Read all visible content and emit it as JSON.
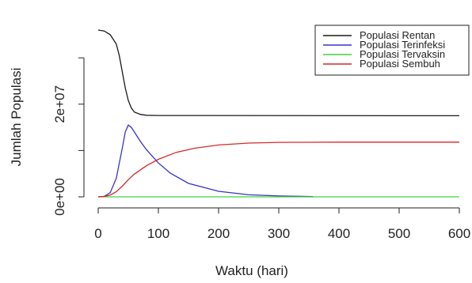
{
  "chart_data": {
    "type": "line",
    "xlabel": "Waktu (hari)",
    "ylabel": "Jumlah Populasi",
    "xlim": [
      0,
      600
    ],
    "ylim": [
      0,
      36000000
    ],
    "x_ticks": [
      {
        "value": 0,
        "label": "0"
      },
      {
        "value": 100,
        "label": "100"
      },
      {
        "value": 200,
        "label": "200"
      },
      {
        "value": 300,
        "label": "300"
      },
      {
        "value": 400,
        "label": "400"
      },
      {
        "value": 500,
        "label": "500"
      },
      {
        "value": 600,
        "label": "600"
      }
    ],
    "y_ticks": [
      {
        "value": 0,
        "label": "0e+00"
      },
      {
        "value": 20000000,
        "label": "2e+07"
      }
    ],
    "y_minor_ticks": [
      10000000,
      30000000
    ],
    "grid": false,
    "legend_position": "top-right",
    "series": [
      {
        "name": "Populasi Rentan",
        "color": "#1a1a1a",
        "points": [
          [
            0,
            36000000
          ],
          [
            10,
            35800000
          ],
          [
            20,
            35000000
          ],
          [
            30,
            33000000
          ],
          [
            35,
            30500000
          ],
          [
            40,
            27000000
          ],
          [
            45,
            23500000
          ],
          [
            50,
            20800000
          ],
          [
            55,
            19200000
          ],
          [
            60,
            18300000
          ],
          [
            70,
            17800000
          ],
          [
            80,
            17600000
          ],
          [
            100,
            17550000
          ],
          [
            600,
            17500000
          ]
        ]
      },
      {
        "name": "Populasi Terinfeksi",
        "color": "#3535c8",
        "points": [
          [
            0,
            0
          ],
          [
            10,
            100000
          ],
          [
            20,
            900000
          ],
          [
            30,
            4000000
          ],
          [
            40,
            10500000
          ],
          [
            45,
            14000000
          ],
          [
            50,
            15500000
          ],
          [
            55,
            15000000
          ],
          [
            60,
            14000000
          ],
          [
            70,
            12000000
          ],
          [
            80,
            10200000
          ],
          [
            100,
            7300000
          ],
          [
            120,
            5100000
          ],
          [
            150,
            2900000
          ],
          [
            200,
            1200000
          ],
          [
            250,
            450000
          ],
          [
            300,
            180000
          ],
          [
            357,
            50000
          ]
        ]
      },
      {
        "name": "Populasi Tervaksin",
        "color": "#3ed33e",
        "points": [
          [
            0,
            0
          ],
          [
            600,
            0
          ]
        ]
      },
      {
        "name": "Populasi Sembuh",
        "color": "#d42a2a",
        "points": [
          [
            0,
            0
          ],
          [
            10,
            80000
          ],
          [
            20,
            400000
          ],
          [
            30,
            1100000
          ],
          [
            40,
            2300000
          ],
          [
            50,
            3700000
          ],
          [
            60,
            4900000
          ],
          [
            80,
            6700000
          ],
          [
            100,
            8100000
          ],
          [
            130,
            9600000
          ],
          [
            160,
            10500000
          ],
          [
            200,
            11200000
          ],
          [
            250,
            11600000
          ],
          [
            300,
            11750000
          ],
          [
            400,
            11800000
          ],
          [
            600,
            11800000
          ]
        ]
      }
    ]
  }
}
